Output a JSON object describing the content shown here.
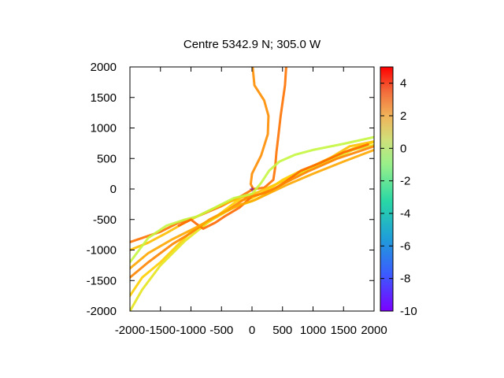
{
  "chart_data": {
    "type": "line",
    "title": "Centre 5342.9 N; 305.0  W",
    "xlabel": "",
    "ylabel": "",
    "xlim": [
      -2000,
      2000
    ],
    "ylim": [
      -2000,
      2000
    ],
    "x_ticks": [
      "-2000",
      "-1500",
      "-1000",
      "-500",
      "0",
      "500",
      "1000",
      "1500",
      "2000"
    ],
    "y_ticks": [
      "2000",
      "1500",
      "1000",
      "500",
      "0",
      "-500",
      "-1000",
      "-1500",
      "-2000"
    ],
    "grid": false,
    "colorbar": {
      "range": [
        -10,
        5
      ],
      "ticks": [
        "4",
        "2",
        "0",
        "-2",
        "-4",
        "-6",
        "-8",
        "-10"
      ],
      "colormap": "rainbow"
    },
    "centre_marker": {
      "x": 0,
      "y": 0,
      "symbol": "+"
    },
    "series": [
      {
        "color_value": 2.2,
        "points": [
          [
            10,
            2000
          ],
          [
            40,
            1700
          ],
          [
            200,
            1450
          ],
          [
            270,
            1200
          ],
          [
            260,
            900
          ],
          [
            150,
            550
          ],
          [
            0,
            250
          ],
          [
            -20,
            80
          ],
          [
            20,
            0
          ]
        ]
      },
      {
        "color_value": 2.8,
        "points": [
          [
            560,
            2000
          ],
          [
            540,
            1700
          ],
          [
            470,
            1200
          ],
          [
            430,
            850
          ],
          [
            400,
            600
          ],
          [
            380,
            350
          ],
          [
            350,
            150
          ],
          [
            200,
            20
          ],
          [
            20,
            0
          ],
          [
            -150,
            -100
          ],
          [
            -500,
            -280
          ],
          [
            -900,
            -450
          ],
          [
            -1200,
            -550
          ],
          [
            -1500,
            -700
          ],
          [
            -2000,
            -870
          ]
        ]
      },
      {
        "color_value": 1.0,
        "points": [
          [
            2000,
            780
          ],
          [
            1600,
            700
          ],
          [
            1300,
            520
          ],
          [
            1000,
            380
          ],
          [
            700,
            230
          ],
          [
            400,
            80
          ],
          [
            100,
            -50
          ],
          [
            -200,
            -150
          ],
          [
            -500,
            -260
          ],
          [
            -800,
            -400
          ],
          [
            -1100,
            -550
          ],
          [
            -1400,
            -720
          ],
          [
            -1700,
            -880
          ],
          [
            -2000,
            -1000
          ]
        ]
      },
      {
        "color_value": -1.2,
        "points": [
          [
            2000,
            850
          ],
          [
            1500,
            740
          ],
          [
            1000,
            640
          ],
          [
            700,
            560
          ],
          [
            450,
            450
          ],
          [
            280,
            300
          ],
          [
            150,
            100
          ],
          [
            0,
            -80
          ],
          [
            -300,
            -150
          ],
          [
            -600,
            -300
          ],
          [
            -900,
            -450
          ],
          [
            -1100,
            -500
          ],
          [
            -1400,
            -600
          ],
          [
            -1700,
            -800
          ],
          [
            -2000,
            -1200
          ]
        ]
      },
      {
        "color_value": 0.5,
        "points": [
          [
            2000,
            770
          ],
          [
            1700,
            680
          ],
          [
            1400,
            560
          ],
          [
            1100,
            420
          ],
          [
            800,
            300
          ],
          [
            500,
            150
          ],
          [
            250,
            -20
          ],
          [
            0,
            -150
          ],
          [
            -250,
            -200
          ],
          [
            -450,
            -350
          ],
          [
            -650,
            -500
          ],
          [
            -800,
            -600
          ],
          [
            -1000,
            -700
          ],
          [
            -1200,
            -900
          ],
          [
            -1500,
            -1200
          ],
          [
            -1800,
            -1450
          ],
          [
            -2000,
            -1750
          ]
        ]
      },
      {
        "color_value": -0.3,
        "points": [
          [
            2000,
            720
          ],
          [
            1650,
            640
          ],
          [
            1300,
            470
          ],
          [
            1000,
            350
          ],
          [
            700,
            200
          ],
          [
            300,
            -50
          ],
          [
            0,
            -200
          ],
          [
            -300,
            -300
          ],
          [
            -700,
            -530
          ],
          [
            -1100,
            -850
          ],
          [
            -1500,
            -1250
          ],
          [
            -1800,
            -1650
          ],
          [
            -2000,
            -2000
          ]
        ]
      },
      {
        "color_value": 3.0,
        "points": [
          [
            1900,
            730
          ],
          [
            1500,
            600
          ],
          [
            1100,
            420
          ],
          [
            800,
            300
          ],
          [
            550,
            120
          ],
          [
            300,
            -40
          ],
          [
            0,
            -120
          ],
          [
            -200,
            -300
          ],
          [
            -450,
            -450
          ],
          [
            -600,
            -550
          ],
          [
            -800,
            -650
          ],
          [
            -900,
            -580
          ],
          [
            -1000,
            -500
          ],
          [
            -1200,
            -600
          ]
        ]
      },
      {
        "color_value": 2.4,
        "points": [
          [
            2000,
            700
          ],
          [
            1400,
            500
          ],
          [
            900,
            280
          ],
          [
            600,
            130
          ],
          [
            350,
            0
          ],
          [
            150,
            -80
          ],
          [
            -100,
            -150
          ],
          [
            -400,
            -350
          ],
          [
            -700,
            -500
          ],
          [
            -1000,
            -720
          ],
          [
            -1300,
            -900
          ],
          [
            -1700,
            -1200
          ],
          [
            -2000,
            -1450
          ]
        ]
      },
      {
        "color_value": 1.6,
        "points": [
          [
            2000,
            640
          ],
          [
            1500,
            450
          ],
          [
            1000,
            250
          ],
          [
            600,
            80
          ],
          [
            300,
            -60
          ],
          [
            50,
            -180
          ],
          [
            -200,
            -260
          ],
          [
            -500,
            -400
          ],
          [
            -900,
            -620
          ],
          [
            -1300,
            -820
          ],
          [
            -1700,
            -1050
          ],
          [
            -2000,
            -1300
          ]
        ]
      }
    ]
  }
}
